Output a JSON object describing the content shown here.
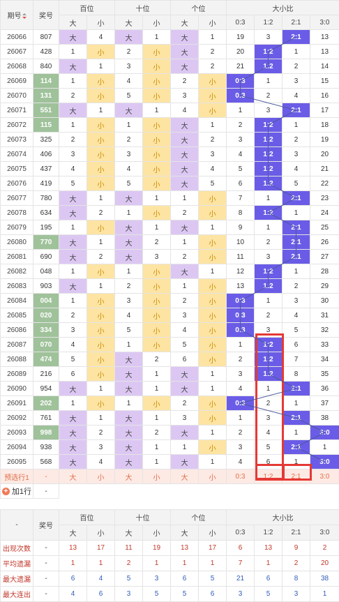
{
  "header": {
    "issue_label": "期号",
    "number_label": "奖号",
    "groups": [
      "百位",
      "十位",
      "个位",
      "大小比"
    ],
    "big": "大",
    "small": "小",
    "ratios": [
      "0:3",
      "1:2",
      "2:1",
      "3:0"
    ]
  },
  "rows": [
    {
      "issue": "26066",
      "num": "807",
      "hl": false,
      "h": [
        1,
        4
      ],
      "t": [
        1,
        1
      ],
      "u": [
        1,
        1
      ],
      "r": [
        19,
        3,
        "R",
        13
      ]
    },
    {
      "issue": "26067",
      "num": "428",
      "hl": false,
      "h": [
        1,
        0
      ],
      "t": [
        2,
        0
      ],
      "u": [
        1,
        2
      ],
      "r": [
        20,
        "R",
        1,
        13
      ]
    },
    {
      "issue": "26068",
      "num": "840",
      "hl": false,
      "h": [
        1,
        1
      ],
      "t": [
        3,
        0
      ],
      "u": [
        1,
        2
      ],
      "r": [
        21,
        "R",
        2,
        14
      ]
    },
    {
      "issue": "26069",
      "num": "114",
      "hl": true,
      "h": [
        1,
        0
      ],
      "t": [
        4,
        0
      ],
      "u": [
        2,
        0
      ],
      "r": [
        "R",
        1,
        3,
        15
      ]
    },
    {
      "issue": "26070",
      "num": "131",
      "hl": true,
      "h": [
        2,
        0
      ],
      "t": [
        5,
        0
      ],
      "u": [
        3,
        0
      ],
      "r": [
        "R",
        2,
        4,
        16
      ]
    },
    {
      "issue": "26071",
      "num": "551",
      "hl": true,
      "h": [
        1,
        1
      ],
      "t": [
        1,
        1
      ],
      "u": [
        4,
        0
      ],
      "r": [
        1,
        3,
        "R",
        17
      ]
    },
    {
      "issue": "26072",
      "num": "115",
      "hl": true,
      "h": [
        1,
        0
      ],
      "t": [
        1,
        0
      ],
      "u": [
        1,
        1
      ],
      "r": [
        2,
        "R",
        1,
        18
      ]
    },
    {
      "issue": "26073",
      "num": "325",
      "hl": false,
      "h": [
        2,
        0
      ],
      "t": [
        2,
        0
      ],
      "u": [
        1,
        2
      ],
      "r": [
        3,
        "R",
        2,
        19
      ]
    },
    {
      "issue": "26074",
      "num": "406",
      "hl": false,
      "h": [
        3,
        0
      ],
      "t": [
        3,
        0
      ],
      "u": [
        1,
        3
      ],
      "r": [
        4,
        "R",
        3,
        20
      ]
    },
    {
      "issue": "26075",
      "num": "437",
      "hl": false,
      "h": [
        4,
        0
      ],
      "t": [
        4,
        0
      ],
      "u": [
        1,
        4
      ],
      "r": [
        5,
        "R",
        4,
        21
      ]
    },
    {
      "issue": "26076",
      "num": "419",
      "hl": false,
      "h": [
        5,
        0
      ],
      "t": [
        5,
        0
      ],
      "u": [
        1,
        5
      ],
      "r": [
        6,
        "R",
        5,
        22
      ]
    },
    {
      "issue": "26077",
      "num": "780",
      "hl": false,
      "h": [
        1,
        1
      ],
      "t": [
        1,
        1
      ],
      "u": [
        1,
        0
      ],
      "r": [
        7,
        1,
        "R",
        23
      ]
    },
    {
      "issue": "26078",
      "num": "634",
      "hl": false,
      "h": [
        1,
        2
      ],
      "t": [
        1,
        0
      ],
      "u": [
        2,
        0
      ],
      "r": [
        8,
        "R",
        1,
        24
      ]
    },
    {
      "issue": "26079",
      "num": "195",
      "hl": false,
      "h": [
        1,
        0
      ],
      "t": [
        1,
        1
      ],
      "u": [
        1,
        1
      ],
      "r": [
        9,
        1,
        "R",
        25
      ]
    },
    {
      "issue": "26080",
      "num": "770",
      "hl": true,
      "h": [
        1,
        1
      ],
      "t": [
        1,
        2
      ],
      "u": [
        1,
        0
      ],
      "r": [
        10,
        2,
        "R",
        26
      ]
    },
    {
      "issue": "26081",
      "num": "690",
      "hl": false,
      "h": [
        1,
        2
      ],
      "t": [
        1,
        3
      ],
      "u": [
        2,
        0
      ],
      "r": [
        11,
        3,
        "R",
        27
      ]
    },
    {
      "issue": "26082",
      "num": "048",
      "hl": false,
      "h": [
        1,
        0
      ],
      "t": [
        1,
        0
      ],
      "u": [
        1,
        1
      ],
      "r": [
        12,
        "R",
        1,
        28
      ]
    },
    {
      "issue": "26083",
      "num": "903",
      "hl": false,
      "h": [
        1,
        1
      ],
      "t": [
        2,
        0
      ],
      "u": [
        1,
        0
      ],
      "r": [
        13,
        "R",
        2,
        29
      ]
    },
    {
      "issue": "26084",
      "num": "004",
      "hl": true,
      "h": [
        1,
        0
      ],
      "t": [
        3,
        0
      ],
      "u": [
        2,
        0
      ],
      "r": [
        "R",
        1,
        3,
        30
      ]
    },
    {
      "issue": "26085",
      "num": "020",
      "hl": true,
      "h": [
        2,
        0
      ],
      "t": [
        4,
        0
      ],
      "u": [
        3,
        0
      ],
      "r": [
        "R",
        2,
        4,
        31
      ]
    },
    {
      "issue": "26086",
      "num": "334",
      "hl": true,
      "h": [
        3,
        0
      ],
      "t": [
        5,
        0
      ],
      "u": [
        4,
        0
      ],
      "r": [
        "R",
        3,
        5,
        32
      ]
    },
    {
      "issue": "26087",
      "num": "070",
      "hl": true,
      "h": [
        4,
        0
      ],
      "t": [
        1,
        0
      ],
      "u": [
        5,
        0
      ],
      "r": [
        1,
        "R",
        6,
        33
      ]
    },
    {
      "issue": "26088",
      "num": "474",
      "hl": true,
      "h": [
        5,
        0
      ],
      "t": [
        1,
        2
      ],
      "u": [
        6,
        0
      ],
      "r": [
        2,
        "R",
        7,
        34
      ]
    },
    {
      "issue": "26089",
      "num": "216",
      "hl": false,
      "h": [
        6,
        0
      ],
      "t": [
        1,
        1
      ],
      "u": [
        1,
        1
      ],
      "r": [
        3,
        "R",
        8,
        35
      ]
    },
    {
      "issue": "26090",
      "num": "954",
      "hl": false,
      "h": [
        1,
        1
      ],
      "t": [
        1,
        1
      ],
      "u": [
        1,
        1
      ],
      "r": [
        4,
        1,
        "R",
        36
      ]
    },
    {
      "issue": "26091",
      "num": "202",
      "hl": true,
      "h": [
        1,
        0
      ],
      "t": [
        1,
        0
      ],
      "u": [
        2,
        0
      ],
      "r": [
        "R",
        2,
        1,
        37
      ]
    },
    {
      "issue": "26092",
      "num": "761",
      "hl": false,
      "h": [
        1,
        1
      ],
      "t": [
        1,
        1
      ],
      "u": [
        3,
        0
      ],
      "r": [
        1,
        3,
        "R",
        38
      ]
    },
    {
      "issue": "26093",
      "num": "998",
      "hl": true,
      "h": [
        1,
        2
      ],
      "t": [
        1,
        2
      ],
      "u": [
        1,
        1
      ],
      "r": [
        2,
        4,
        1,
        "R"
      ]
    },
    {
      "issue": "26094",
      "num": "938",
      "hl": false,
      "h": [
        1,
        3
      ],
      "t": [
        1,
        1
      ],
      "u": [
        1,
        0
      ],
      "r": [
        3,
        5,
        "R",
        1
      ]
    },
    {
      "issue": "26095",
      "num": "568",
      "hl": false,
      "h": [
        1,
        4
      ],
      "t": [
        1,
        1
      ],
      "u": [
        1,
        1
      ],
      "r": [
        4,
        6,
        1,
        "R"
      ]
    }
  ],
  "prediction": {
    "label": "预选行1",
    "num": "-",
    "cells": [
      "大",
      "小",
      "大",
      "小",
      "大",
      "小",
      "0:3",
      "1:2",
      "2:1",
      "3:0"
    ]
  },
  "add_row": {
    "label": "加1行",
    "value": "-"
  },
  "stats_header": {
    "dash": "-",
    "number_label": "奖号"
  },
  "stats": [
    {
      "label": "出现次数",
      "num": "-",
      "values": [
        13,
        17,
        11,
        19,
        13,
        17,
        6,
        13,
        9,
        2
      ],
      "tone": "red"
    },
    {
      "label": "平均遗漏",
      "num": "-",
      "values": [
        1,
        1,
        2,
        1,
        1,
        1,
        7,
        1,
        2,
        20
      ],
      "tone": "red"
    },
    {
      "label": "最大遗漏",
      "num": "-",
      "values": [
        6,
        4,
        5,
        3,
        6,
        5,
        21,
        6,
        8,
        38
      ],
      "tone": "blue"
    },
    {
      "label": "最大连出",
      "num": "-",
      "values": [
        4,
        6,
        3,
        5,
        5,
        6,
        3,
        5,
        3,
        1
      ],
      "tone": "blue"
    }
  ],
  "colors": {
    "big": "#dcc7f3",
    "small": "#fde4a3",
    "ratio_hit": "#6b5ce7",
    "number_hit": "#9fc29a",
    "box": "#e53935"
  }
}
